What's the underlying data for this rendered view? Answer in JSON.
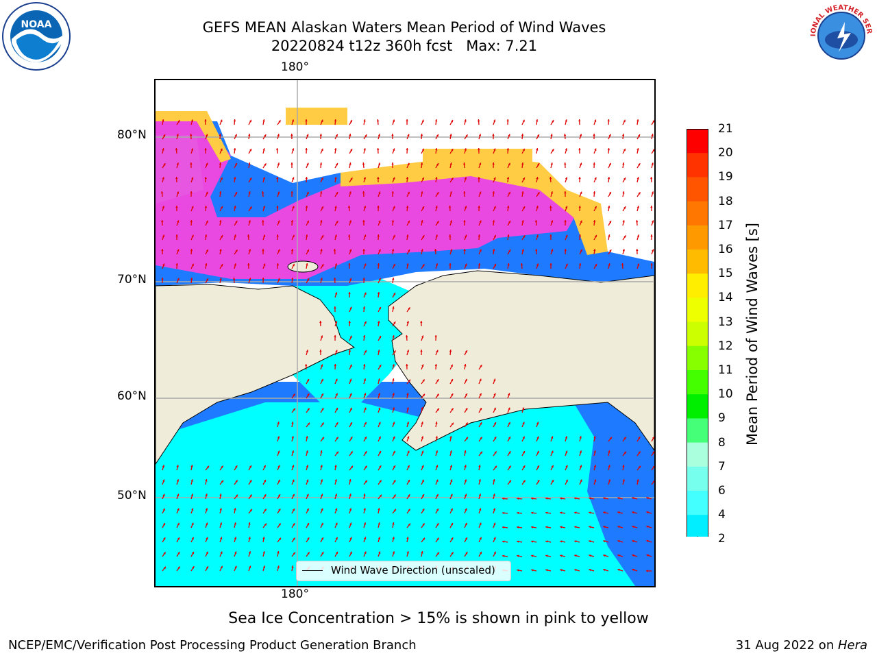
{
  "header": {
    "title_line1": "GEFS MEAN Alaskan Waters Mean Period of Wind Waves",
    "title_line2": "20220824 t12z 360h fcst   Max: 7.21"
  },
  "logos": {
    "left": "NOAA",
    "right": "NATIONAL WEATHER SERVICE"
  },
  "map": {
    "lon_tick_top": "180°",
    "lon_tick_bottom": "180°",
    "lat_ticks": [
      "80°N",
      "70°N",
      "60°N",
      "50°N"
    ],
    "legend_label": "Wind Wave Direction (unscaled)",
    "colors": {
      "land": "#efedda",
      "ocean_low": "#00ffff",
      "ocean_mid": "#1e7bff",
      "ice_pink": "#ff44dd",
      "ice_yellow": "#ffcc44",
      "arrows": "#e00000"
    }
  },
  "colorbar": {
    "label": "Mean Period of Wind Waves [s]",
    "ticks": [
      "21",
      "20",
      "19",
      "18",
      "17",
      "16",
      "15",
      "14",
      "13",
      "12",
      "11",
      "10",
      "9",
      "8",
      "7",
      "6",
      "4",
      "2"
    ],
    "colors": [
      "#ff0000",
      "#ff3300",
      "#ff5500",
      "#ff7700",
      "#ff9900",
      "#ffbb00",
      "#ffee00",
      "#eeff00",
      "#ccff00",
      "#88ff00",
      "#44ff00",
      "#00ee00",
      "#44ff77",
      "#aaffdd",
      "#77ffee",
      "#44ffff",
      "#00eeff",
      "#0077ff",
      "#0000ee"
    ]
  },
  "caption": "Sea Ice Concentration > 15% is shown in pink to yellow",
  "footer": {
    "left": "NCEP/EMC/Verification Post Processing Product Generation Branch",
    "right_date": "31 Aug 2022 on ",
    "right_host": "Hera"
  }
}
